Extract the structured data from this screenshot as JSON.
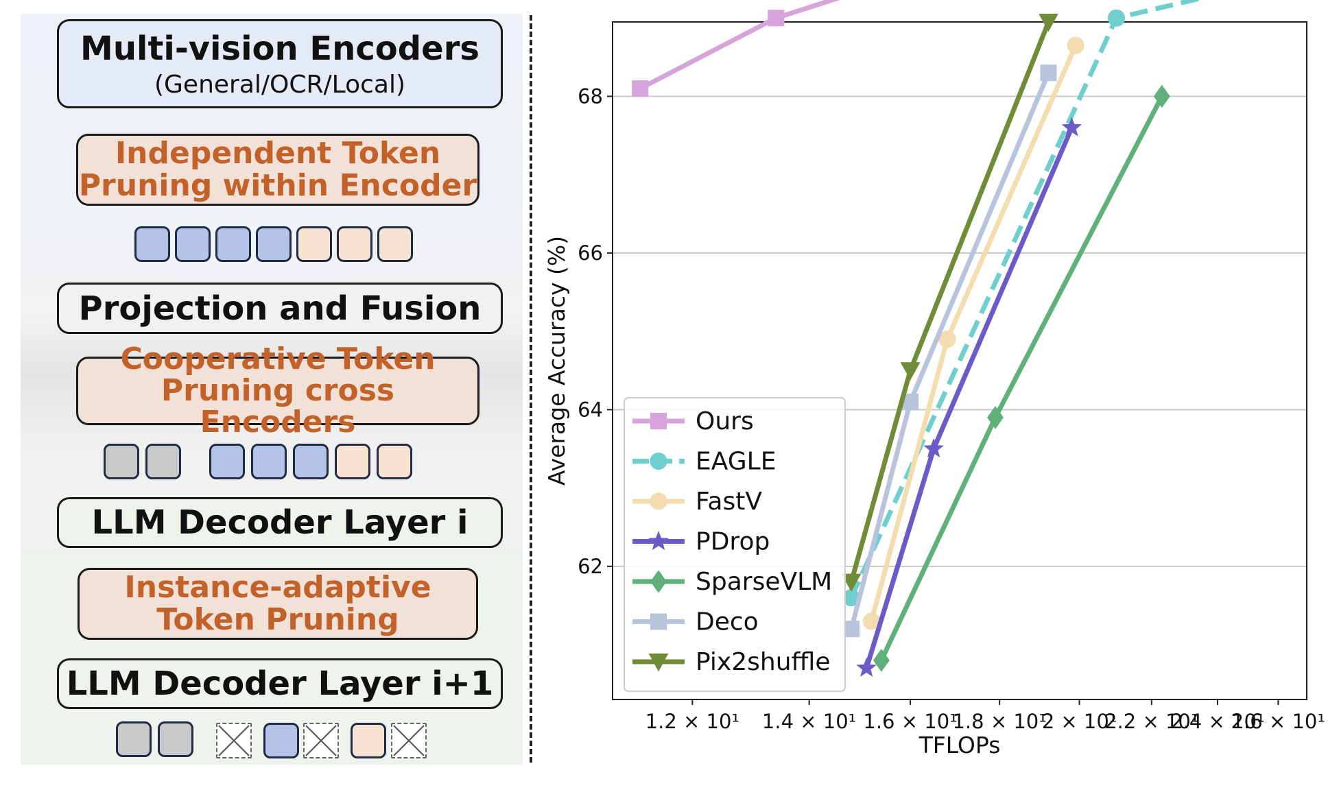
{
  "diagram": {
    "encoders": {
      "title": "Multi-vision Encoders",
      "subtitle": "(General/OCR/Local)"
    },
    "independent": "Independent Token\nPruning within Encoder",
    "projection": "Projection and Fusion",
    "cooperative": "Cooperative Token\nPruning cross Encoders",
    "decoder_i": "LLM Decoder Layer i",
    "instance": "Instance-adaptive\nToken Pruning",
    "decoder_i1": "LLM Decoder Layer i+1",
    "colors": {
      "orange_text": "#c2622a",
      "blue_token": "#b4c4e6",
      "peach_token": "#f8e3d2",
      "gray_token": "#c9c9cb"
    }
  },
  "chart_data": {
    "type": "line",
    "xlabel": "TFLOPs",
    "ylabel": "Average Accuracy (%)",
    "x_scale": "log",
    "xlim": [
      10.8,
      27.0
    ],
    "ylim": [
      60.3,
      68.95
    ],
    "xticks": [
      12,
      14,
      16,
      18,
      20,
      22,
      24,
      26
    ],
    "xtick_labels": [
      "1.2 × 10¹",
      "1.4 × 10¹",
      "1.6 × 10¹",
      "1.8 × 10¹",
      "2 × 10¹",
      "2.2 × 10¹",
      "2.4 × 10¹",
      "2.6 × 10¹"
    ],
    "yticks": [
      62,
      64,
      66,
      68
    ],
    "ytick_labels": [
      "62",
      "64",
      "66",
      "68"
    ],
    "grid": "horizontal",
    "legend_position": "lower-left",
    "series": [
      {
        "name": "Ours",
        "color": "#d6a3da",
        "marker": "square",
        "dash": false,
        "x": [
          11.2,
          13.4,
          15.0
        ],
        "y": [
          68.1,
          69.0,
          69.35
        ]
      },
      {
        "name": "EAGLE",
        "color": "#6fcfcf",
        "marker": "circle",
        "dash": true,
        "x": [
          14.8,
          21.0,
          26.2
        ],
        "y": [
          61.6,
          69.0,
          69.5
        ]
      },
      {
        "name": "FastV",
        "color": "#f3dcae",
        "marker": "circle",
        "dash": false,
        "x": [
          15.2,
          16.8,
          19.9
        ],
        "y": [
          61.3,
          64.9,
          68.65
        ]
      },
      {
        "name": "PDrop",
        "color": "#6b5ac8",
        "marker": "star",
        "dash": false,
        "x": [
          15.1,
          16.5,
          19.8
        ],
        "y": [
          60.7,
          63.5,
          67.6
        ]
      },
      {
        "name": "SparseVLM",
        "color": "#5fb07a",
        "marker": "diamond",
        "dash": false,
        "x": [
          15.4,
          17.9,
          22.3
        ],
        "y": [
          60.8,
          63.9,
          68.0
        ]
      },
      {
        "name": "Deco",
        "color": "#b8c4dc",
        "marker": "square",
        "dash": false,
        "x": [
          14.8,
          16.0,
          19.2
        ],
        "y": [
          61.2,
          64.1,
          68.3
        ]
      },
      {
        "name": "Pix2shuffle",
        "color": "#6f8d36",
        "marker": "triangle-down",
        "dash": false,
        "x": [
          14.8,
          16.0,
          19.2
        ],
        "y": [
          61.8,
          64.5,
          68.95
        ]
      }
    ]
  }
}
